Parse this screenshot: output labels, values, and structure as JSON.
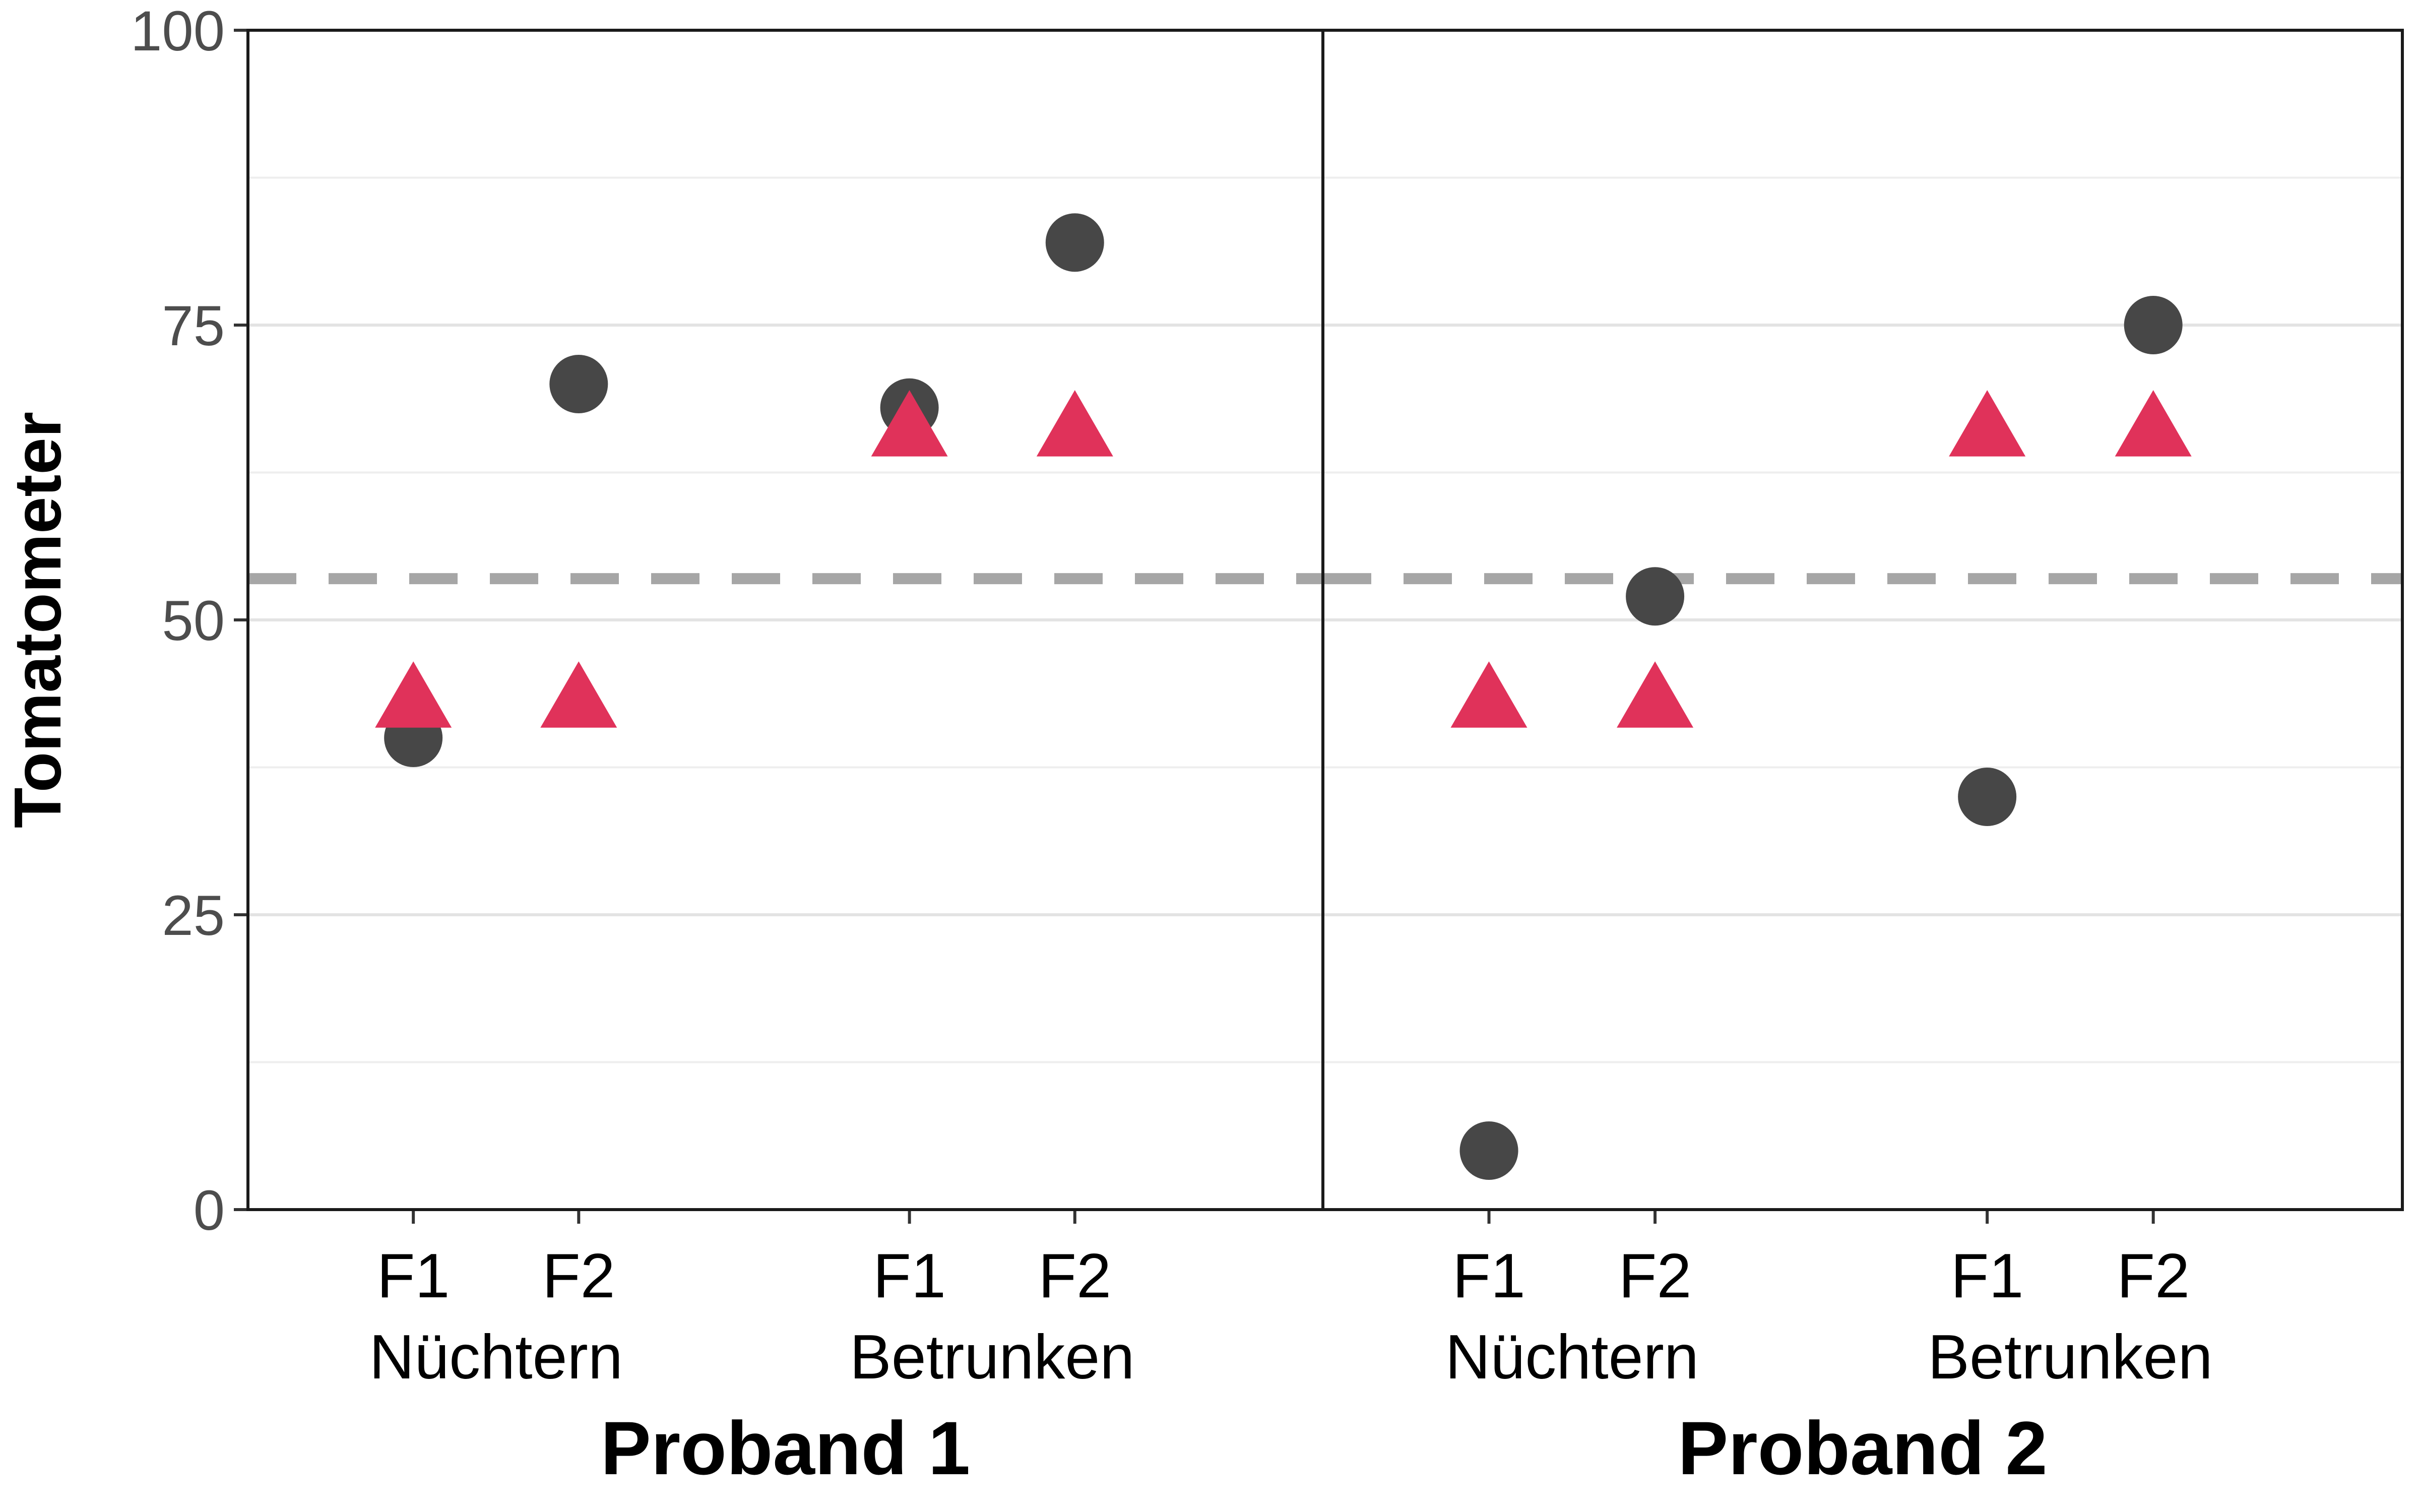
{
  "chart_data": {
    "type": "scatter",
    "ylabel": "Tomatometer",
    "ylim": [
      0,
      100
    ],
    "yticks": [
      0,
      25,
      50,
      75,
      100
    ],
    "reference_line": {
      "y": 53.5,
      "style": "dashed",
      "color": "#a6a6a6"
    },
    "grid": "horizontal",
    "marker_colors": {
      "circle": "#474747",
      "triangle": "#e0325a"
    },
    "panels": [
      {
        "label": "Proband 1",
        "groups": [
          {
            "label": "Nüchtern",
            "categories": [
              {
                "label": "F1",
                "circle": 40,
                "triangle": 43
              },
              {
                "label": "F2",
                "circle": 70,
                "triangle": 43
              }
            ]
          },
          {
            "label": "Betrunken",
            "categories": [
              {
                "label": "F1",
                "circle": 68,
                "triangle": 66
              },
              {
                "label": "F2",
                "circle": 82,
                "triangle": 66
              }
            ]
          }
        ]
      },
      {
        "label": "Proband 2",
        "groups": [
          {
            "label": "Nüchtern",
            "categories": [
              {
                "label": "F1",
                "circle": 5,
                "triangle": 43
              },
              {
                "label": "F2",
                "circle": 52,
                "triangle": 43
              }
            ]
          },
          {
            "label": "Betrunken",
            "categories": [
              {
                "label": "F1",
                "circle": 35,
                "triangle": 66
              },
              {
                "label": "F2",
                "circle": 75,
                "triangle": 66
              }
            ]
          }
        ]
      }
    ]
  }
}
